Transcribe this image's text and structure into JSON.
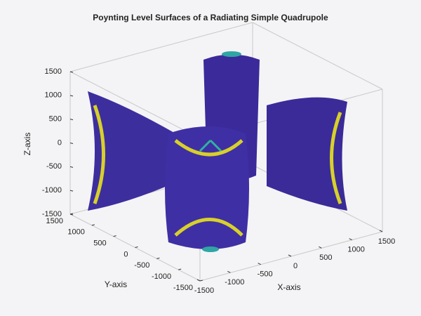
{
  "chart_data": {
    "type": "surface3d",
    "title": "Poynting Level Surfaces of a Radiating Simple Quadrupole",
    "xlabel": "X-axis",
    "ylabel": "Y-axis",
    "zlabel": "Z-axis",
    "xlim": [
      -1500,
      1500
    ],
    "xticks": [
      -1500,
      -1000,
      -500,
      0,
      500,
      1000,
      1500
    ],
    "ylim": [
      -1500,
      1500
    ],
    "yticks": [
      -1500,
      -1000,
      -500,
      0,
      500,
      1000,
      1500
    ],
    "zlim": [
      -1500,
      1500
    ],
    "zticks": [
      -1500,
      -1000,
      -500,
      0,
      500,
      1000,
      1500
    ],
    "grid": false
  }
}
